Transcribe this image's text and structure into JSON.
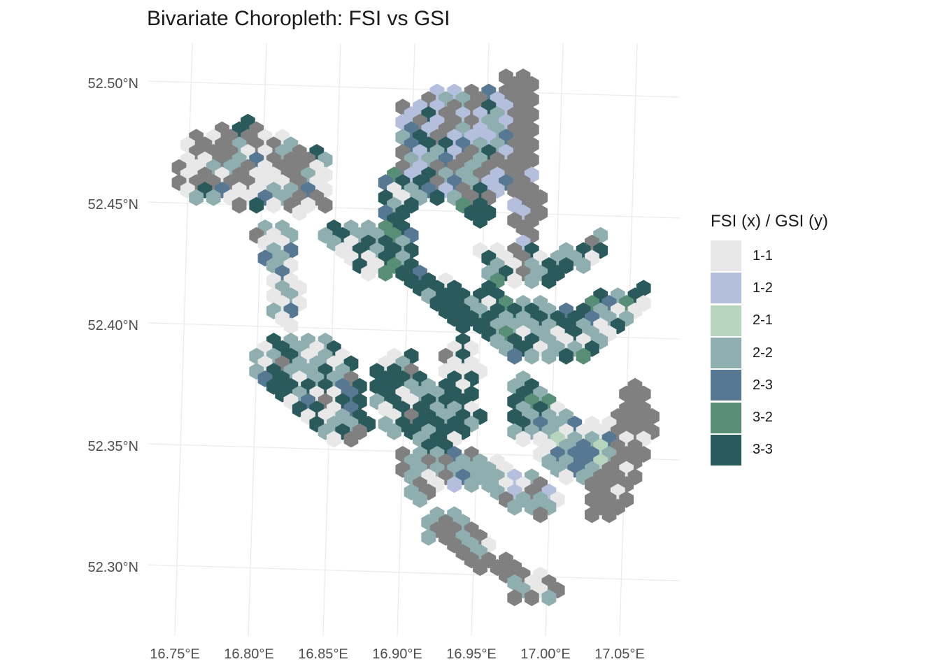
{
  "title": "Bivariate Choropleth: FSI vs GSI",
  "axes": {
    "x_ticks": [
      "16.75°E",
      "16.80°E",
      "16.85°E",
      "16.90°E",
      "16.95°E",
      "17.00°E",
      "17.05°E"
    ],
    "y_ticks": [
      "52.50°N",
      "52.45°N",
      "52.40°N",
      "52.35°N",
      "52.30°N"
    ]
  },
  "legend": {
    "title": "FSI (x) / GSI (y)",
    "items": [
      {
        "label": "1-1",
        "color": "#e8e8e8"
      },
      {
        "label": "1-2",
        "color": "#b3bfdc"
      },
      {
        "label": "2-1",
        "color": "#b7d4bd"
      },
      {
        "label": "2-2",
        "color": "#8eaeb0"
      },
      {
        "label": "2-3",
        "color": "#567893"
      },
      {
        "label": "3-2",
        "color": "#598e76"
      },
      {
        "label": "3-3",
        "color": "#2a5a5b"
      }
    ]
  },
  "na_color": "#808080"
}
